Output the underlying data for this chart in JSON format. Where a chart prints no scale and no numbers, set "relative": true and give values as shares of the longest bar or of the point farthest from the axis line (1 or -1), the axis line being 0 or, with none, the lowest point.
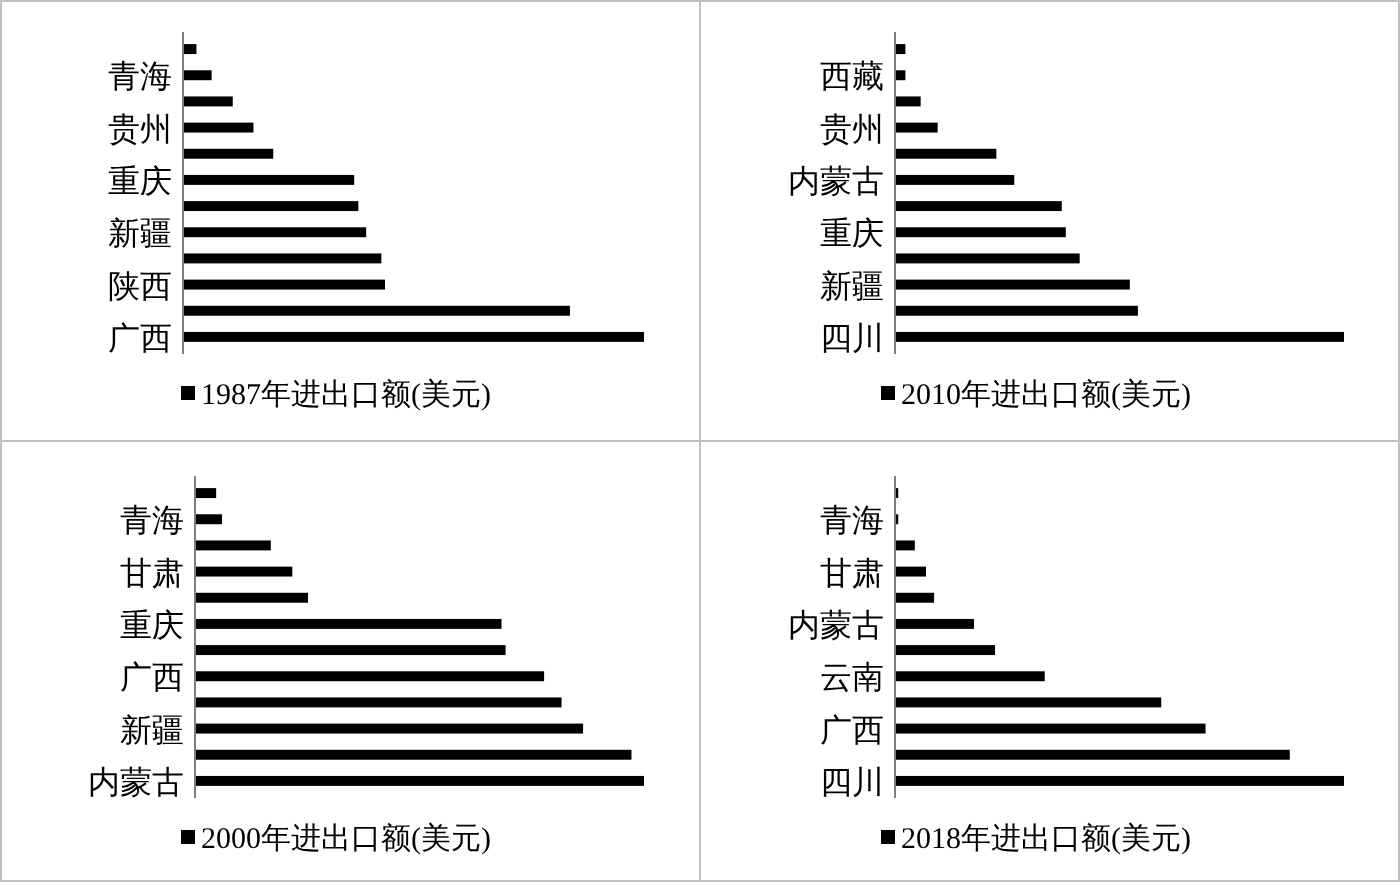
{
  "chart_data": [
    {
      "type": "bar",
      "orientation": "horizontal",
      "relative": true,
      "legend": "bottom",
      "categories": [
        null,
        "青海",
        null,
        "贵州",
        null,
        "重庆",
        null,
        "新疆",
        null,
        "陕西",
        null,
        "广西"
      ],
      "series": [
        {
          "name": "1987年进出口额(美元)",
          "color": "#000000",
          "values": [
            0.027,
            0.06,
            0.106,
            0.151,
            0.194,
            0.37,
            0.379,
            0.396,
            0.429,
            0.437,
            0.839,
            1
          ]
        }
      ]
    },
    {
      "type": "bar",
      "orientation": "horizontal",
      "relative": true,
      "legend": "bottom",
      "categories": [
        null,
        "西藏",
        null,
        "贵州",
        null,
        "内蒙古",
        null,
        "重庆",
        null,
        "新疆",
        null,
        "四川"
      ],
      "series": [
        {
          "name": "2010年进出口额(美元)",
          "color": "#000000",
          "values": [
            0.021,
            0.021,
            0.055,
            0.093,
            0.224,
            0.264,
            0.37,
            0.379,
            0.41,
            0.522,
            0.54,
            1
          ]
        }
      ]
    },
    {
      "type": "bar",
      "orientation": "horizontal",
      "relative": true,
      "legend": "bottom",
      "categories": [
        null,
        "青海",
        null,
        "甘肃",
        null,
        "重庆",
        null,
        "广西",
        null,
        "新疆",
        null,
        "内蒙古"
      ],
      "series": [
        {
          "name": "2000年进出口额(美元)",
          "color": "#000000",
          "values": [
            0.045,
            0.058,
            0.167,
            0.215,
            0.25,
            0.682,
            0.691,
            0.777,
            0.816,
            0.864,
            0.972,
            1
          ]
        }
      ]
    },
    {
      "type": "bar",
      "orientation": "horizontal",
      "relative": true,
      "legend": "bottom",
      "categories": [
        null,
        "青海",
        null,
        "甘肃",
        null,
        "内蒙古",
        null,
        "云南",
        null,
        "广西",
        null,
        "四川"
      ],
      "series": [
        {
          "name": "2018年进出口额(美元)",
          "color": "#000000",
          "values": [
            0.005,
            0.005,
            0.042,
            0.067,
            0.085,
            0.174,
            0.221,
            0.332,
            0.592,
            0.691,
            0.879,
            1
          ]
        }
      ]
    }
  ]
}
